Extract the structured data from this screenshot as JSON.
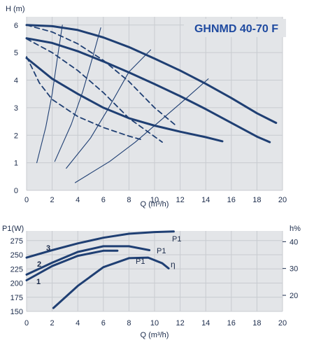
{
  "colors": {
    "curve": "#1f3f73",
    "grid": "#c8cbd0",
    "plot_bg": "#e3e5e8",
    "text": "#1a2a4a",
    "title": "#1f4aa0"
  },
  "chart_data": [
    {
      "type": "line",
      "title": "GHNMD 40-70 F",
      "ylabel": "H (m)",
      "xlabel": "Q (m³/h)",
      "xlim": [
        0,
        20
      ],
      "ylim": [
        0,
        6.3
      ],
      "xticks": [
        "0",
        "2",
        "4",
        "6",
        "8",
        "10",
        "12",
        "14",
        "16",
        "18",
        "20"
      ],
      "yticks": [
        "0",
        "1",
        "2",
        "3",
        "4",
        "5",
        "6"
      ],
      "grid": true,
      "series": [
        {
          "style": "solid",
          "x": [
            0,
            2,
            4,
            6,
            8,
            10,
            12,
            14,
            16,
            18,
            19.5
          ],
          "y": [
            6.0,
            5.96,
            5.82,
            5.55,
            5.2,
            4.78,
            4.35,
            3.87,
            3.35,
            2.8,
            2.45
          ]
        },
        {
          "style": "solid",
          "x": [
            0,
            2,
            4,
            6,
            8,
            10,
            12,
            14,
            16,
            18,
            19
          ],
          "y": [
            5.52,
            5.35,
            5.05,
            4.68,
            4.28,
            3.86,
            3.42,
            2.95,
            2.45,
            1.95,
            1.75
          ]
        },
        {
          "style": "solid",
          "x": [
            0,
            2,
            4,
            6,
            8,
            10,
            12,
            14,
            15.3
          ],
          "y": [
            4.8,
            4.05,
            3.5,
            3.0,
            2.62,
            2.35,
            2.13,
            1.93,
            1.78
          ]
        },
        {
          "style": "dashed",
          "x": [
            0,
            2,
            4,
            6,
            8,
            10,
            11.6
          ],
          "y": [
            6.0,
            5.75,
            5.32,
            4.72,
            3.95,
            3.0,
            2.38
          ]
        },
        {
          "style": "dashed",
          "x": [
            0,
            2,
            4,
            6,
            8,
            10.6
          ],
          "y": [
            5.5,
            5.0,
            4.35,
            3.55,
            2.62,
            1.75
          ]
        },
        {
          "style": "dashed",
          "x": [
            0,
            1,
            2,
            4,
            6,
            8,
            8.9
          ],
          "y": [
            4.85,
            3.9,
            3.3,
            2.68,
            2.28,
            1.97,
            1.85
          ]
        },
        {
          "style": "thin",
          "x": [
            0.8,
            1.5,
            2.0,
            2.5,
            2.8
          ],
          "y": [
            1.0,
            2.3,
            3.5,
            5.1,
            6.0
          ]
        },
        {
          "style": "thin",
          "x": [
            2.2,
            3.5,
            4.4,
            5.2,
            5.8
          ],
          "y": [
            1.05,
            2.4,
            3.6,
            4.9,
            5.9
          ]
        },
        {
          "style": "thin",
          "x": [
            3.1,
            5.0,
            6.3,
            8.0,
            9.7
          ],
          "y": [
            0.8,
            1.9,
            2.9,
            4.3,
            5.1
          ]
        },
        {
          "style": "thin",
          "x": [
            3.8,
            6.5,
            8.5,
            10.5,
            12.5,
            14.2
          ],
          "y": [
            0.28,
            1.05,
            1.75,
            2.55,
            3.35,
            4.05
          ]
        }
      ]
    },
    {
      "type": "line",
      "xlabel": "Q (m³/h)",
      "ylabel": "P1(W)",
      "ylabel_right": "h%",
      "xlim": [
        0,
        20
      ],
      "ylim": [
        150,
        292
      ],
      "ylim_right": [
        14,
        44
      ],
      "xticks": [
        "0",
        "2",
        "4",
        "6",
        "8",
        "10",
        "12",
        "14",
        "16",
        "18",
        "20"
      ],
      "yticks": [
        "150",
        "175",
        "200",
        "225",
        "250",
        "275"
      ],
      "yticks_right": [
        "20",
        "30",
        "40"
      ],
      "grid": true,
      "curve_labels": [
        "3",
        "2",
        "1"
      ],
      "series": [
        {
          "name": "P1",
          "x": [
            0,
            2,
            4,
            6,
            8,
            10,
            11.5
          ],
          "y": [
            245,
            258,
            270,
            280,
            287,
            290,
            291
          ]
        },
        {
          "name": "P1",
          "x": [
            0,
            2,
            4,
            6,
            8,
            9.6
          ],
          "y": [
            215,
            236,
            255,
            265,
            265,
            258
          ]
        },
        {
          "name": "P1",
          "x": [
            0,
            2,
            4,
            6,
            7.1
          ],
          "y": [
            205,
            230,
            248,
            257,
            257
          ]
        },
        {
          "name": "η",
          "x": [
            2.1,
            4,
            6,
            8,
            9.5,
            10.6,
            11.1
          ],
          "y": [
            156,
            195,
            228,
            244,
            245,
            235,
            226
          ]
        }
      ],
      "label_texts": [
        "P1",
        "P1",
        "P1",
        "η"
      ]
    }
  ]
}
